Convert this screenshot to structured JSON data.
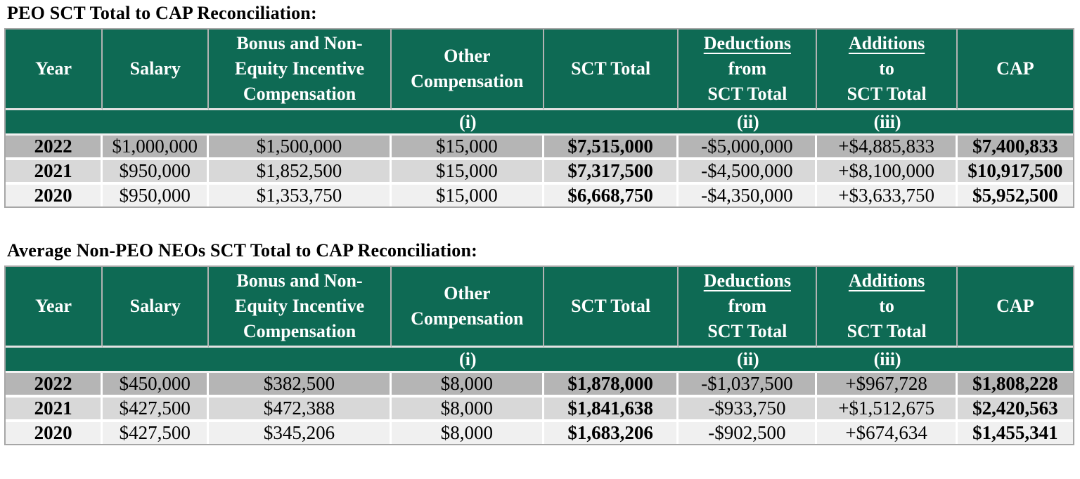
{
  "colors": {
    "header_green": "#0e6a54",
    "header_text": "#ffffff",
    "row_2022_bg": "#b5b5b5",
    "row_2021_bg": "#d8d8d8",
    "row_2020_bg": "#f0f0f0",
    "grid_line": "#b3b3b3",
    "outer_border": "#a6a6a6",
    "title_text": "#000000"
  },
  "tables": [
    {
      "title": "PEO SCT Total to CAP Reconciliation:",
      "columns": [
        {
          "lines": [
            "Year"
          ]
        },
        {
          "lines": [
            "Salary"
          ]
        },
        {
          "lines": [
            "Bonus and Non-",
            "Equity Incentive",
            "Compensation"
          ]
        },
        {
          "lines": [
            "Other",
            "Compensation"
          ]
        },
        {
          "lines": [
            "SCT Total"
          ]
        },
        {
          "underlined": "Deductions",
          "lines": [
            "from",
            "SCT Total"
          ]
        },
        {
          "underlined": "Additions",
          "lines": [
            "to",
            "SCT Total"
          ]
        },
        {
          "lines": [
            "CAP"
          ]
        }
      ],
      "footnotes": {
        "other_compensation": "(i)",
        "deductions": "(ii)",
        "additions": "(iii)"
      },
      "rows": [
        {
          "year": "2022",
          "salary": "$1,000,000",
          "bonus": "$1,500,000",
          "other": "$15,000",
          "sct_total": "$7,515,000",
          "deductions": "-$5,000,000",
          "additions": "+$4,885,833",
          "cap": "$7,400,833"
        },
        {
          "year": "2021",
          "salary": "$950,000",
          "bonus": "$1,852,500",
          "other": "$15,000",
          "sct_total": "$7,317,500",
          "deductions": "-$4,500,000",
          "additions": "+$8,100,000",
          "cap": "$10,917,500"
        },
        {
          "year": "2020",
          "salary": "$950,000",
          "bonus": "$1,353,750",
          "other": "$15,000",
          "sct_total": "$6,668,750",
          "deductions": "-$4,350,000",
          "additions": "+$3,633,750",
          "cap": "$5,952,500"
        }
      ]
    },
    {
      "title": "Average Non-PEO NEOs SCT Total to CAP Reconciliation:",
      "columns": [
        {
          "lines": [
            "Year"
          ]
        },
        {
          "lines": [
            "Salary"
          ]
        },
        {
          "lines": [
            "Bonus and Non-",
            "Equity Incentive",
            "Compensation"
          ]
        },
        {
          "lines": [
            "Other",
            "Compensation"
          ]
        },
        {
          "lines": [
            "SCT Total"
          ]
        },
        {
          "underlined": "Deductions",
          "lines": [
            "from",
            "SCT Total"
          ]
        },
        {
          "underlined": "Additions",
          "lines": [
            "to",
            "SCT Total"
          ]
        },
        {
          "lines": [
            "CAP"
          ]
        }
      ],
      "footnotes": {
        "other_compensation": "(i)",
        "deductions": "(ii)",
        "additions": "(iii)"
      },
      "rows": [
        {
          "year": "2022",
          "salary": "$450,000",
          "bonus": "$382,500",
          "other": "$8,000",
          "sct_total": "$1,878,000",
          "deductions": "-$1,037,500",
          "additions": "+$967,728",
          "cap": "$1,808,228"
        },
        {
          "year": "2021",
          "salary": "$427,500",
          "bonus": "$472,388",
          "other": "$8,000",
          "sct_total": "$1,841,638",
          "deductions": "-$933,750",
          "additions": "+$1,512,675",
          "cap": "$2,420,563"
        },
        {
          "year": "2020",
          "salary": "$427,500",
          "bonus": "$345,206",
          "other": "$8,000",
          "sct_total": "$1,683,206",
          "deductions": "-$902,500",
          "additions": "+$674,634",
          "cap": "$1,455,341"
        }
      ]
    }
  ]
}
